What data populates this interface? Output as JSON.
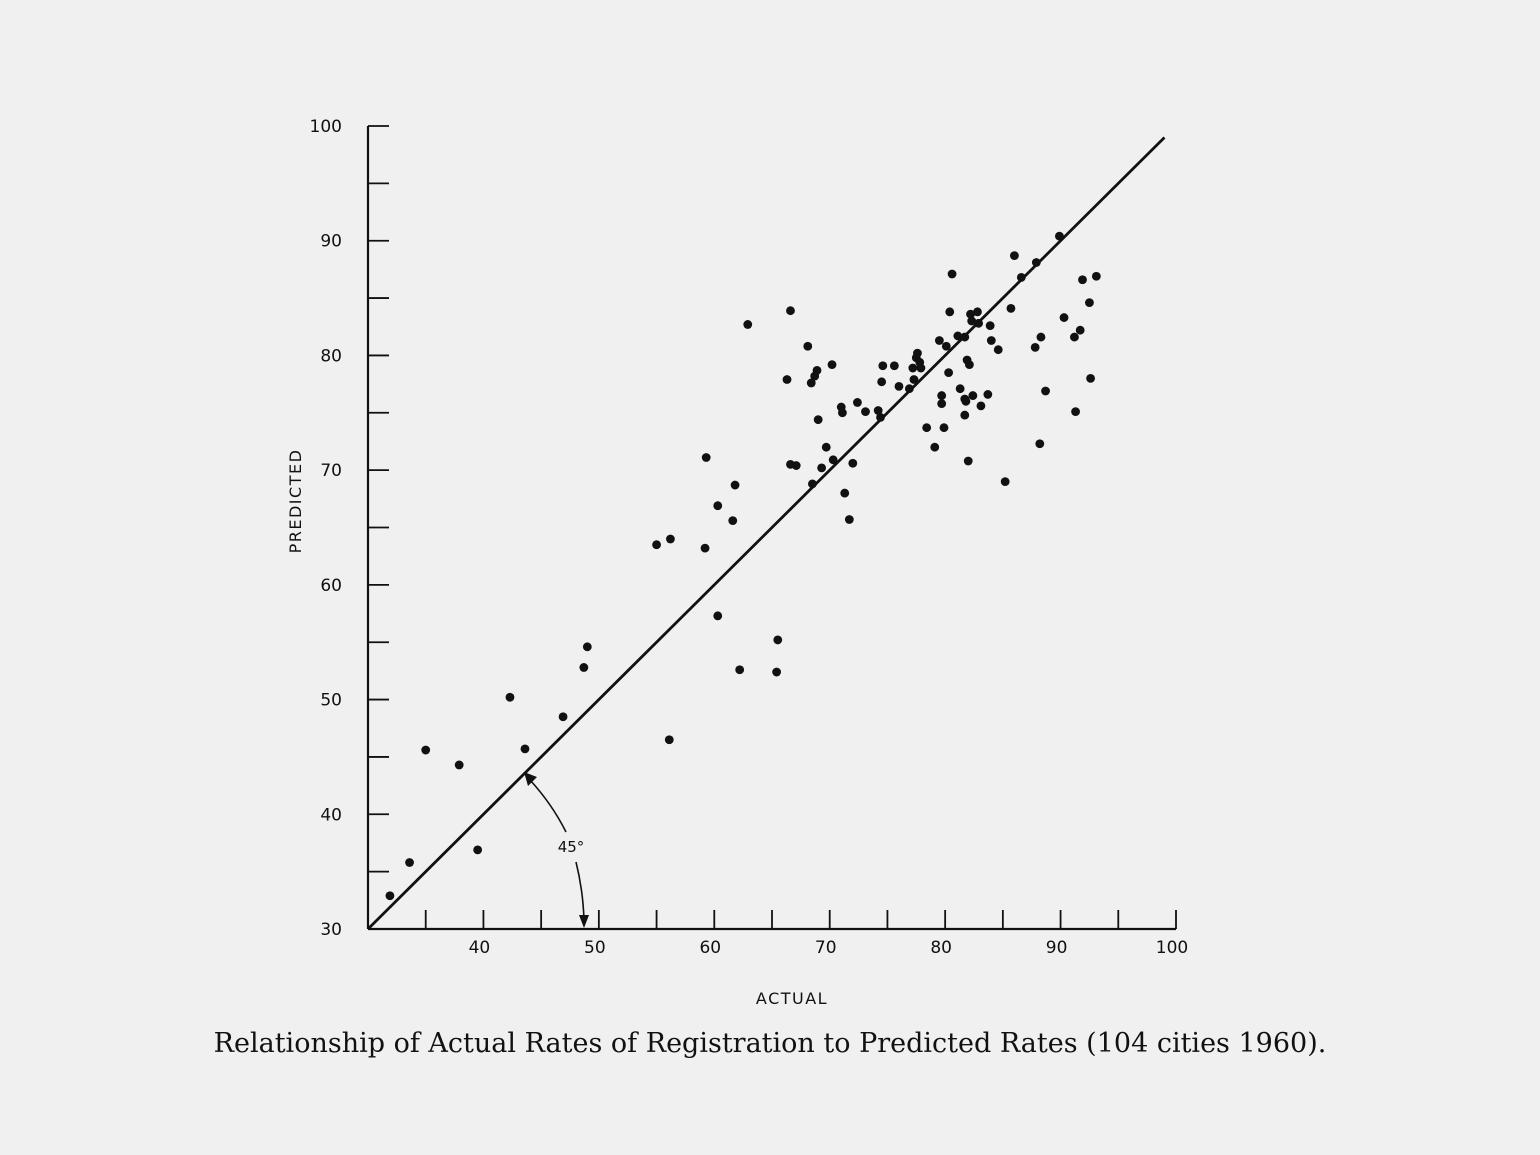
{
  "caption": "Relationship of Actual Rates of Registration to Predicted Rates (104 cities 1960).",
  "chart_data": {
    "type": "scatter",
    "title": "",
    "xlabel": "ACTUAL",
    "ylabel": "PREDICTED",
    "xlim": [
      30,
      100
    ],
    "ylim": [
      30,
      100
    ],
    "x_tick_labels": [
      "40",
      "50",
      "60",
      "70",
      "80",
      "90",
      "100"
    ],
    "y_tick_labels": [
      "30",
      "40",
      "50",
      "60",
      "70",
      "80",
      "90",
      "100"
    ],
    "reference_line": {
      "from": [
        30,
        30
      ],
      "to": [
        99,
        99
      ]
    },
    "annotation": "45°",
    "points": [
      [
        31.9,
        32.9
      ],
      [
        33.6,
        35.8
      ],
      [
        35.0,
        45.6
      ],
      [
        37.9,
        44.3
      ],
      [
        39.5,
        36.9
      ],
      [
        42.3,
        50.2
      ],
      [
        43.6,
        45.7
      ],
      [
        46.9,
        48.5
      ],
      [
        48.7,
        52.8
      ],
      [
        49.0,
        54.6
      ],
      [
        55.0,
        63.5
      ],
      [
        56.1,
        46.5
      ],
      [
        56.2,
        64.0
      ],
      [
        59.2,
        63.2
      ],
      [
        59.3,
        71.1
      ],
      [
        60.3,
        66.9
      ],
      [
        60.3,
        57.3
      ],
      [
        61.6,
        65.6
      ],
      [
        61.8,
        68.7
      ],
      [
        62.2,
        52.6
      ],
      [
        62.9,
        82.7
      ],
      [
        65.4,
        52.4
      ],
      [
        65.5,
        55.2
      ],
      [
        66.3,
        77.9
      ],
      [
        66.6,
        83.9
      ],
      [
        66.6,
        70.5
      ],
      [
        67.1,
        70.4
      ],
      [
        68.1,
        80.8
      ],
      [
        68.4,
        77.6
      ],
      [
        68.5,
        68.8
      ],
      [
        68.7,
        78.2
      ],
      [
        68.9,
        78.7
      ],
      [
        69.0,
        74.4
      ],
      [
        69.3,
        70.2
      ],
      [
        69.7,
        72.0
      ],
      [
        70.2,
        79.2
      ],
      [
        70.3,
        70.9
      ],
      [
        71.0,
        75.5
      ],
      [
        71.1,
        75.0
      ],
      [
        71.3,
        68.0
      ],
      [
        71.7,
        65.7
      ],
      [
        72.0,
        70.6
      ],
      [
        72.4,
        75.9
      ],
      [
        73.1,
        75.1
      ],
      [
        74.2,
        75.2
      ],
      [
        74.4,
        74.6
      ],
      [
        74.5,
        77.7
      ],
      [
        74.6,
        79.1
      ],
      [
        75.6,
        79.1
      ],
      [
        76.0,
        77.3
      ],
      [
        76.9,
        77.1
      ],
      [
        77.2,
        78.9
      ],
      [
        77.3,
        77.9
      ],
      [
        77.5,
        79.8
      ],
      [
        77.6,
        80.2
      ],
      [
        77.8,
        79.4
      ],
      [
        77.9,
        78.9
      ],
      [
        78.4,
        73.7
      ],
      [
        79.1,
        72.0
      ],
      [
        79.5,
        81.3
      ],
      [
        79.7,
        76.5
      ],
      [
        79.7,
        75.8
      ],
      [
        79.9,
        73.7
      ],
      [
        80.1,
        80.8
      ],
      [
        80.3,
        78.5
      ],
      [
        80.4,
        83.8
      ],
      [
        80.6,
        87.1
      ],
      [
        81.1,
        81.7
      ],
      [
        81.3,
        77.1
      ],
      [
        81.7,
        81.6
      ],
      [
        81.7,
        76.2
      ],
      [
        81.7,
        74.8
      ],
      [
        81.8,
        76.0
      ],
      [
        81.9,
        79.6
      ],
      [
        82.0,
        70.8
      ],
      [
        82.1,
        79.2
      ],
      [
        82.2,
        83.6
      ],
      [
        82.3,
        83.0
      ],
      [
        82.4,
        76.5
      ],
      [
        82.8,
        83.8
      ],
      [
        82.9,
        82.8
      ],
      [
        83.1,
        75.6
      ],
      [
        83.7,
        76.6
      ],
      [
        83.9,
        82.6
      ],
      [
        84.0,
        81.3
      ],
      [
        84.6,
        80.5
      ],
      [
        85.2,
        69.0
      ],
      [
        85.7,
        84.1
      ],
      [
        86.0,
        88.7
      ],
      [
        86.6,
        86.8
      ],
      [
        87.8,
        80.7
      ],
      [
        87.9,
        88.1
      ],
      [
        88.2,
        72.3
      ],
      [
        88.3,
        81.6
      ],
      [
        88.7,
        76.9
      ],
      [
        89.9,
        90.4
      ],
      [
        90.3,
        83.3
      ],
      [
        91.2,
        81.6
      ],
      [
        91.3,
        75.1
      ],
      [
        91.7,
        82.2
      ],
      [
        91.9,
        86.6
      ],
      [
        92.5,
        84.6
      ],
      [
        92.6,
        78.0
      ],
      [
        93.1,
        86.9
      ]
    ]
  }
}
